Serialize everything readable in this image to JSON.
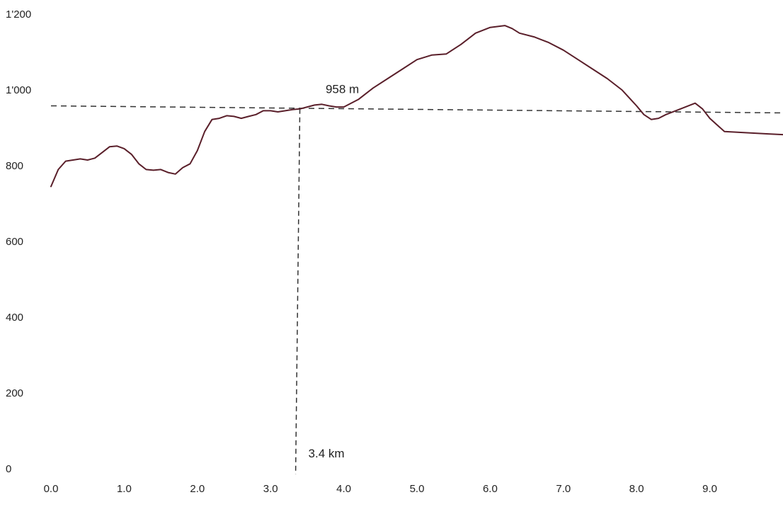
{
  "chart_data": {
    "type": "line",
    "title": "",
    "xlabel": "",
    "ylabel": "",
    "xlim": [
      0.0,
      10.0
    ],
    "ylim": [
      0,
      1200
    ],
    "x_ticks": [
      0.0,
      1.0,
      2.0,
      3.0,
      4.0,
      5.0,
      6.0,
      7.0,
      8.0,
      9.0
    ],
    "x_tick_labels": [
      "0.0",
      "1.0",
      "2.0",
      "3.0",
      "4.0",
      "5.0",
      "6.0",
      "7.0",
      "8.0",
      "9.0"
    ],
    "y_ticks": [
      0,
      200,
      400,
      600,
      800,
      1000,
      1200
    ],
    "y_tick_labels": [
      "0",
      "200",
      "400",
      "600",
      "800",
      "1'000",
      "1'200"
    ],
    "grid": false,
    "series": [
      {
        "color": "#5a1f2a",
        "x": [
          0.0,
          0.1,
          0.2,
          0.3,
          0.4,
          0.5,
          0.6,
          0.7,
          0.8,
          0.9,
          1.0,
          1.1,
          1.2,
          1.3,
          1.4,
          1.5,
          1.6,
          1.7,
          1.8,
          1.9,
          2.0,
          2.1,
          2.2,
          2.3,
          2.4,
          2.5,
          2.6,
          2.7,
          2.8,
          2.9,
          3.0,
          3.1,
          3.2,
          3.3,
          3.4,
          3.5,
          3.6,
          3.7,
          3.8,
          3.9,
          4.0,
          4.2,
          4.4,
          4.6,
          4.8,
          5.0,
          5.2,
          5.4,
          5.6,
          5.7,
          5.8,
          6.0,
          6.2,
          6.3,
          6.4,
          6.6,
          6.8,
          7.0,
          7.2,
          7.4,
          7.6,
          7.8,
          8.0,
          8.1,
          8.2,
          8.3,
          8.4,
          8.6,
          8.8,
          8.9,
          9.0,
          9.2,
          9.4,
          9.6,
          9.8,
          10.0
        ],
        "y": [
          745,
          790,
          812,
          815,
          818,
          815,
          820,
          835,
          850,
          852,
          845,
          830,
          805,
          790,
          788,
          790,
          782,
          778,
          795,
          805,
          840,
          890,
          922,
          925,
          932,
          930,
          925,
          930,
          935,
          945,
          945,
          942,
          945,
          948,
          950,
          955,
          960,
          962,
          958,
          955,
          955,
          975,
          1005,
          1030,
          1055,
          1080,
          1092,
          1095,
          1120,
          1135,
          1150,
          1165,
          1170,
          1162,
          1150,
          1140,
          1125,
          1105,
          1080,
          1055,
          1030,
          1000,
          958,
          935,
          922,
          925,
          935,
          950,
          965,
          950,
          925,
          890,
          888,
          886,
          884,
          882
        ]
      }
    ],
    "reference_lines": [
      {
        "orientation": "horizontal",
        "y": 958,
        "label": "958 m"
      },
      {
        "orientation": "vertical",
        "x": 3.4,
        "label": "3.4 km"
      }
    ]
  }
}
